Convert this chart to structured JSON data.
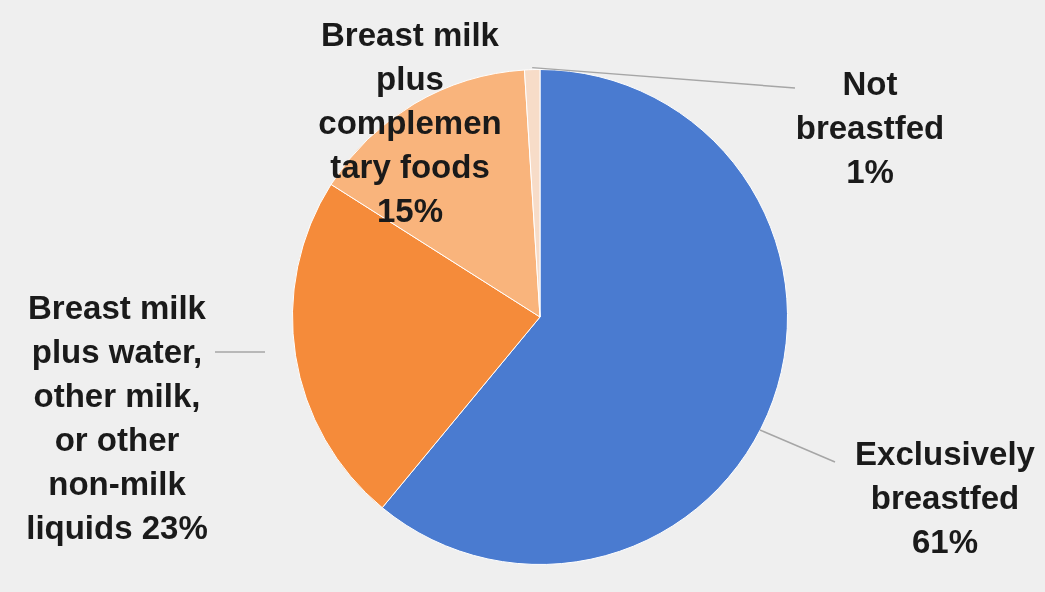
{
  "chart_data": {
    "type": "pie",
    "categories": [
      "Exclusively breastfed",
      "Breast milk plus water, other milk, or other non-milk liquids",
      "Breast milk plus complementary foods",
      "Not breastfed"
    ],
    "values": [
      61,
      23,
      15,
      1
    ],
    "value_labels": [
      "61%",
      "23%",
      "15%",
      "1%"
    ],
    "colors": [
      "#4a7bd0",
      "#f58b3a",
      "#f9b47c",
      "#f7dcc8"
    ]
  }
}
